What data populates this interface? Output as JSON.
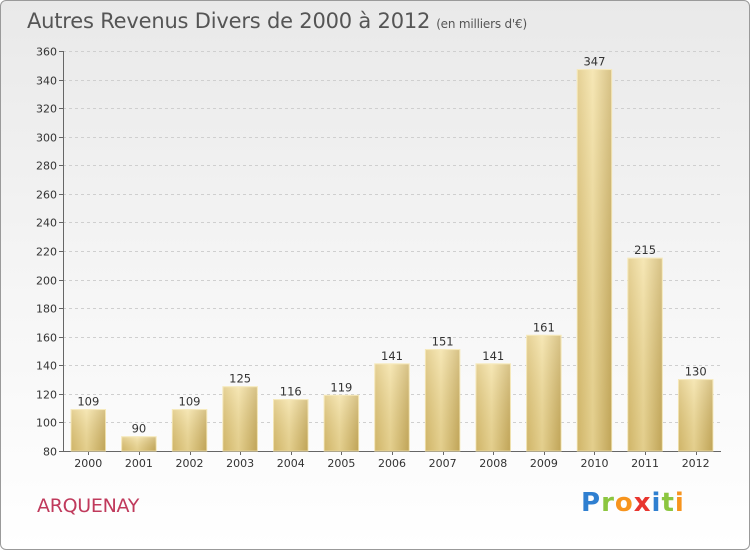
{
  "header": {
    "title": "Autres Revenus Divers de 2000 à 2012",
    "subtitle": "(en milliers d'€)"
  },
  "footer": {
    "place": "ARQUENAY",
    "logo_letters": [
      "P",
      "r",
      "o",
      "x",
      "i",
      "t",
      "i"
    ],
    "logo_colors": [
      "#2f7fd0",
      "#8cc63f",
      "#f7941d",
      "#e8352e",
      "#2f7fd0",
      "#8cc63f",
      "#f7941d"
    ]
  },
  "chart_data": {
    "type": "bar",
    "title": "Autres Revenus Divers de 2000 à 2012",
    "subtitle": "(en milliers d'€)",
    "categories": [
      "2000",
      "2001",
      "2002",
      "2003",
      "2004",
      "2005",
      "2006",
      "2007",
      "2008",
      "2009",
      "2010",
      "2011",
      "2012"
    ],
    "values": [
      109,
      90,
      109,
      125,
      116,
      119,
      141,
      151,
      141,
      161,
      347,
      215,
      130
    ],
    "ylim": [
      80,
      360
    ],
    "yticks": [
      80,
      100,
      120,
      140,
      160,
      180,
      200,
      220,
      240,
      260,
      280,
      300,
      320,
      340,
      360
    ],
    "grid": true,
    "bar_color": "#e8cf82"
  }
}
